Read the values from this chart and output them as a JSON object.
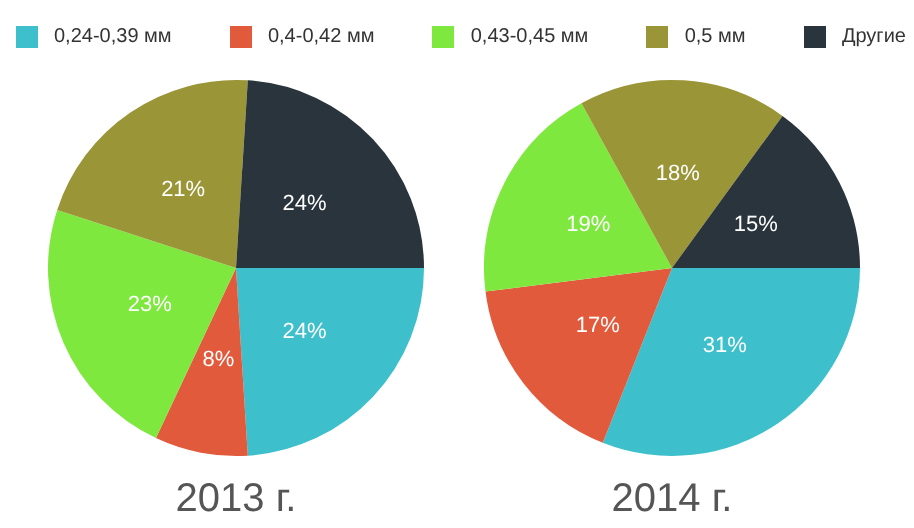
{
  "chart_data": [
    {
      "type": "pie",
      "title": "2013 г.",
      "categories": [
        "0,24-0,39 мм",
        "0,4-0,42 мм",
        "0,43-0,45 мм",
        "0,5 мм",
        "Другие"
      ],
      "values": [
        24,
        8,
        23,
        21,
        24
      ],
      "value_labels": [
        "24%",
        "8%",
        "23%",
        "21%",
        "24%"
      ],
      "colors": [
        "#3dbfcc",
        "#e25a3c",
        "#7ee83f",
        "#9a9638",
        "#2a343c"
      ],
      "legend": "top"
    },
    {
      "type": "pie",
      "title": "2014 г.",
      "categories": [
        null,
        null,
        null,
        null,
        null
      ],
      "values": [
        31,
        17,
        19,
        18,
        15
      ],
      "value_labels": [
        "31%",
        "17%",
        "19%",
        "18%",
        "15%"
      ],
      "colors": [
        "#3dbfcc",
        "#e25a3c",
        "#7ee83f",
        "#9a9638",
        "#2a343c"
      ]
    }
  ]
}
